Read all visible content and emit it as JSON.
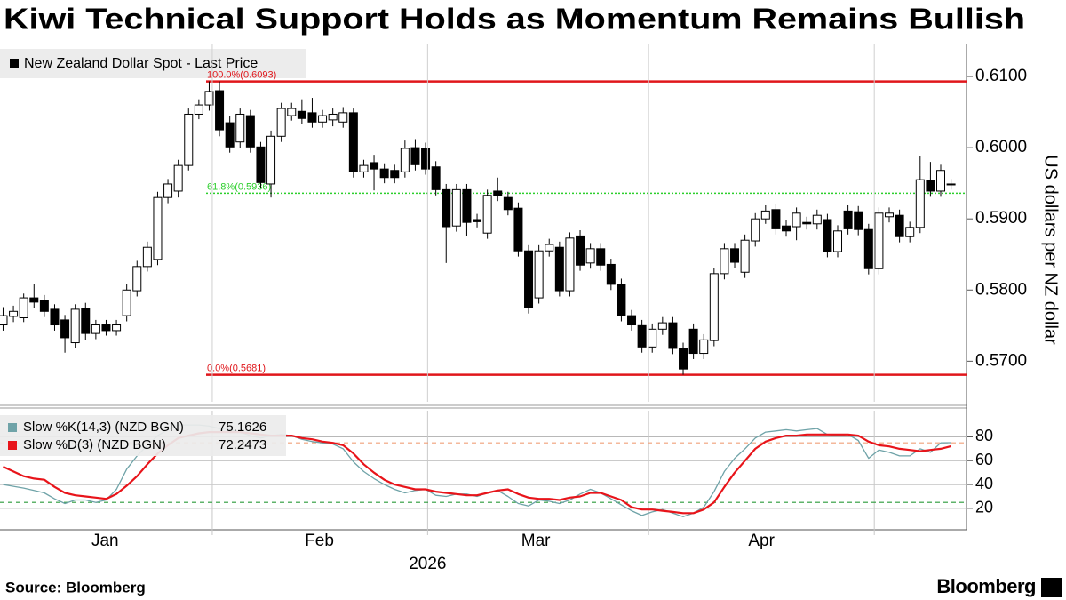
{
  "title": "Kiwi Technical Support Holds as Momentum Remains Bullish",
  "source": "Source: Bloomberg",
  "logo": "Bloomberg",
  "chart_data": [
    {
      "type": "candlestick",
      "legend": "New Zealand Dollar Spot - Last Price",
      "ylabel": "US dollars per NZ dollar",
      "categories": [
        null,
        null,
        null,
        null,
        null,
        null,
        null,
        null,
        null,
        null,
        null,
        null,
        null,
        null,
        null,
        null,
        null,
        null,
        null,
        null,
        null,
        null,
        null,
        null,
        null,
        null,
        null,
        null,
        null,
        null,
        null,
        null,
        null,
        null,
        null,
        null,
        null,
        null,
        null,
        null,
        null,
        null,
        null,
        null,
        null,
        null,
        null,
        null,
        null,
        null,
        null,
        null,
        null,
        null,
        null,
        null,
        null,
        null,
        null,
        null,
        null,
        null,
        null,
        null,
        null,
        null,
        null,
        null,
        null,
        null,
        null,
        null,
        null,
        null,
        null,
        null,
        null,
        null,
        null,
        null,
        null,
        null,
        null,
        null,
        null,
        null,
        null,
        null,
        null,
        null,
        null,
        null,
        null
      ],
      "open": [
        0.5751,
        0.5763,
        0.5761,
        0.5789,
        0.5785,
        0.5773,
        0.5758,
        0.5726,
        0.5774,
        0.5739,
        0.5751,
        0.5743,
        0.5764,
        0.5799,
        0.5833,
        0.5843,
        0.593,
        0.5939,
        0.5975,
        0.6047,
        0.606,
        0.608,
        0.6035,
        0.6008,
        0.6045,
        0.6001,
        0.5949,
        0.6016,
        0.6045,
        0.6051,
        0.6049,
        0.6036,
        0.6039,
        0.6036,
        0.6049,
        0.5966,
        0.5979,
        0.597,
        0.5968,
        0.5966,
        0.6,
        0.5999,
        0.5973,
        0.5941,
        0.589,
        0.5941,
        0.5899,
        0.588,
        0.5939,
        0.593,
        0.5915,
        0.5855,
        0.5789,
        0.5855,
        0.586,
        0.5799,
        0.5876,
        0.5838,
        0.5858,
        0.5836,
        0.5808,
        0.5764,
        0.575,
        0.572,
        0.5745,
        0.5754,
        0.5718,
        0.5745,
        0.5711,
        0.5729,
        0.5823,
        0.5858,
        0.5825,
        0.5869,
        0.59,
        0.5913,
        0.589,
        0.5889,
        0.5895,
        0.5893,
        0.5899,
        0.5854,
        0.5911,
        0.591,
        0.5885,
        0.583,
        0.5903,
        0.5905,
        0.5875,
        0.5888,
        0.5954,
        0.5939,
        0.5949
      ],
      "high": [
        0.5776,
        0.5778,
        0.5795,
        0.5808,
        0.5793,
        0.578,
        0.5765,
        0.578,
        0.5782,
        0.5758,
        0.5758,
        0.5758,
        0.5808,
        0.5841,
        0.5868,
        0.5938,
        0.5956,
        0.5983,
        0.6055,
        0.6068,
        0.6093,
        0.6093,
        0.6045,
        0.6055,
        0.6053,
        0.6008,
        0.6024,
        0.6063,
        0.6063,
        0.6068,
        0.607,
        0.6053,
        0.6055,
        0.6057,
        0.6055,
        0.5983,
        0.599,
        0.5978,
        0.5976,
        0.601,
        0.6012,
        0.6007,
        0.5981,
        0.5949,
        0.5949,
        0.5949,
        0.5907,
        0.5941,
        0.5958,
        0.5938,
        0.5923,
        0.5863,
        0.5863,
        0.5872,
        0.5868,
        0.5881,
        0.5884,
        0.5866,
        0.5866,
        0.5844,
        0.5816,
        0.5772,
        0.5758,
        0.5753,
        0.5762,
        0.5762,
        0.5726,
        0.5753,
        0.5738,
        0.5831,
        0.5866,
        0.5866,
        0.5878,
        0.5908,
        0.5919,
        0.5921,
        0.5898,
        0.5916,
        0.5903,
        0.5913,
        0.5907,
        0.5891,
        0.5919,
        0.5918,
        0.5893,
        0.5916,
        0.5916,
        0.5913,
        0.5896,
        0.5988,
        0.598,
        0.5976,
        0.5956
      ],
      "low": [
        0.5743,
        0.5755,
        0.5755,
        0.5775,
        0.5762,
        0.5743,
        0.5712,
        0.5718,
        0.573,
        0.5731,
        0.5736,
        0.5736,
        0.5756,
        0.5791,
        0.5826,
        0.5835,
        0.5922,
        0.593,
        0.5968,
        0.604,
        0.6052,
        0.6016,
        0.5993,
        0.6,
        0.5993,
        0.5943,
        0.593,
        0.6008,
        0.6038,
        0.6033,
        0.6028,
        0.6028,
        0.603,
        0.6028,
        0.5958,
        0.5958,
        0.594,
        0.595,
        0.595,
        0.5958,
        0.5968,
        0.5962,
        0.5933,
        0.5838,
        0.5882,
        0.5876,
        0.5888,
        0.5872,
        0.5925,
        0.5905,
        0.5847,
        0.5767,
        0.5781,
        0.5847,
        0.5791,
        0.5791,
        0.5827,
        0.583,
        0.5827,
        0.58,
        0.5756,
        0.5743,
        0.5712,
        0.5712,
        0.5737,
        0.571,
        0.5681,
        0.5703,
        0.5703,
        0.5721,
        0.5815,
        0.5831,
        0.5817,
        0.5861,
        0.5893,
        0.5878,
        0.5875,
        0.587,
        0.5885,
        0.5885,
        0.5846,
        0.5846,
        0.5878,
        0.5877,
        0.5822,
        0.5822,
        0.5895,
        0.5867,
        0.5867,
        0.588,
        0.5931,
        0.5931,
        0.5941
      ],
      "close": [
        0.5764,
        0.577,
        0.5789,
        0.5783,
        0.577,
        0.5751,
        0.5733,
        0.5773,
        0.5739,
        0.5751,
        0.5743,
        0.5751,
        0.58,
        0.5833,
        0.586,
        0.593,
        0.5949,
        0.5975,
        0.6047,
        0.606,
        0.6079,
        0.6025,
        0.6001,
        0.6047,
        0.6001,
        0.5951,
        0.6016,
        0.6055,
        0.6055,
        0.6041,
        0.6036,
        0.6045,
        0.6047,
        0.6049,
        0.5966,
        0.5975,
        0.597,
        0.5958,
        0.5958,
        0.5999,
        0.5976,
        0.597,
        0.5941,
        0.5889,
        0.5941,
        0.5895,
        0.5896,
        0.5933,
        0.5933,
        0.5913,
        0.5855,
        0.5775,
        0.5855,
        0.5864,
        0.5799,
        0.5873,
        0.5835,
        0.5858,
        0.5835,
        0.5808,
        0.5764,
        0.5751,
        0.572,
        0.5745,
        0.5754,
        0.5718,
        0.5689,
        0.5711,
        0.573,
        0.5823,
        0.5858,
        0.5839,
        0.587,
        0.59,
        0.5911,
        0.5886,
        0.5883,
        0.5908,
        0.5893,
        0.5905,
        0.5854,
        0.5883,
        0.5886,
        0.5885,
        0.583,
        0.5908,
        0.5908,
        0.5875,
        0.5888,
        0.5955,
        0.5939,
        0.5968,
        0.5948
      ],
      "up_color": "#ffffff",
      "down_color": "#000000",
      "legend_color": "#000000",
      "xlim": [
        -0.3,
        93.5
      ],
      "ylim": [
        0.5643,
        0.6145
      ],
      "yticks": [
        {
          "value": 0.57,
          "label": "0.5700"
        },
        {
          "value": 0.58,
          "label": "0.5800"
        },
        {
          "value": 0.59,
          "label": "0.5900"
        },
        {
          "value": 0.6,
          "label": "0.6000"
        },
        {
          "value": 0.61,
          "label": "0.6100"
        }
      ],
      "annotations": [
        {
          "label": "100.0%(0.6093)",
          "value": 0.6093,
          "color": "#e0161b",
          "style": "solid"
        },
        {
          "label": "61.8%(0.5936)",
          "value": 0.5936,
          "color": "#2ccf2c",
          "style": "dotted"
        },
        {
          "label": "0.0%(0.5681)",
          "value": 0.5681,
          "color": "#e0161b",
          "style": "solid"
        }
      ]
    },
    {
      "type": "line",
      "categories": [
        null,
        null,
        null,
        null,
        null,
        null,
        null,
        null,
        null,
        null,
        null,
        null,
        null,
        null,
        null,
        null,
        null,
        null,
        null,
        null,
        null,
        null,
        null,
        null,
        null,
        null,
        null,
        null,
        null,
        null,
        null,
        null,
        null,
        null,
        null,
        null,
        null,
        null,
        null,
        null,
        null,
        null,
        null,
        null,
        null,
        null,
        null,
        null,
        null,
        null,
        null,
        null,
        null,
        null,
        null,
        null,
        null,
        null,
        null,
        null,
        null,
        null,
        null,
        null,
        null,
        null,
        null,
        null,
        null,
        null,
        null,
        null,
        null,
        null,
        null,
        null,
        null,
        null,
        null,
        null,
        null,
        null,
        null,
        null,
        null,
        null,
        null,
        null,
        null,
        null,
        null,
        null,
        null
      ],
      "series": [
        {
          "name": "Slow %K(14,3) (NZD BGN)",
          "color": "#6fa3a8",
          "values": [
            40,
            38.5,
            37,
            35,
            33,
            28,
            24,
            27,
            27,
            25,
            27,
            36,
            53,
            64,
            73,
            81,
            86,
            90,
            90,
            90,
            89,
            87,
            86,
            84,
            81,
            79,
            81,
            82,
            81,
            78,
            76,
            75,
            74,
            70,
            59,
            51,
            45,
            40,
            36,
            33,
            35,
            36,
            31,
            30,
            32,
            32,
            30,
            33,
            35,
            30,
            24,
            22,
            27,
            26,
            24,
            27,
            32,
            36,
            33,
            28,
            23,
            18,
            14,
            17,
            19,
            16,
            13,
            16,
            21,
            34,
            51,
            62,
            70,
            79,
            84,
            85,
            86,
            85,
            86,
            87,
            82,
            81,
            82,
            77,
            62,
            69,
            67,
            64,
            64,
            70,
            67,
            75,
            75.1626
          ]
        },
        {
          "name": "Slow %D(3) (NZD BGN)",
          "color": "#e8141a",
          "values": [
            55,
            51,
            47,
            45,
            44,
            38,
            33,
            31,
            30,
            29,
            28,
            32,
            39,
            47,
            57,
            66,
            73,
            79,
            81,
            83,
            84,
            84,
            84,
            84,
            83,
            82,
            81,
            81,
            81,
            79,
            78,
            76,
            75,
            73,
            66,
            57,
            50,
            44,
            40,
            38,
            36,
            36,
            34,
            33,
            32,
            31,
            31,
            33,
            35,
            36,
            32,
            29,
            28,
            28,
            27,
            29,
            30,
            33,
            33,
            30,
            27,
            21,
            19,
            19,
            18,
            17,
            16,
            16,
            19,
            25,
            38,
            50,
            60,
            70,
            76,
            79,
            81,
            81,
            82,
            82,
            82,
            82,
            82,
            81,
            76,
            73,
            72,
            70,
            69,
            68,
            69,
            70,
            72.2473
          ]
        }
      ],
      "xlim": [
        -0.3,
        93.5
      ],
      "xticks": [
        {
          "value": 9.9,
          "label": "Jan"
        },
        {
          "value": 30.7,
          "label": "Feb"
        },
        {
          "value": 51.7,
          "label": "Mar"
        },
        {
          "value": 73.6,
          "label": "Apr"
        }
      ],
      "xlabel": "2026",
      "ylim": [
        5,
        102
      ],
      "yticks": [
        20,
        40,
        60,
        80
      ],
      "grid": true,
      "reference_lines": [
        {
          "value": 75,
          "color": "#f0a07a"
        },
        {
          "value": 25,
          "color": "#2a9a3a"
        }
      ]
    }
  ]
}
